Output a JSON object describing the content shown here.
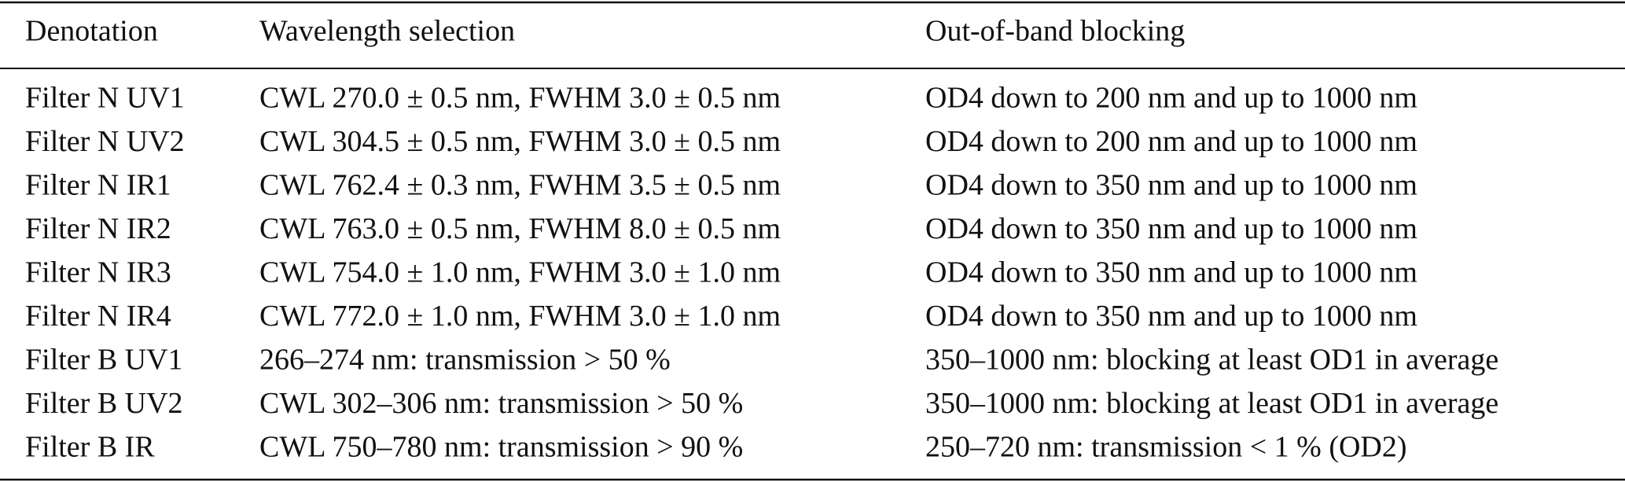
{
  "table": {
    "header": [
      "Denotation",
      "Wavelength selection",
      "Out-of-band blocking"
    ],
    "rows": [
      [
        "Filter N UV1",
        "CWL 270.0 ± 0.5 nm, FWHM 3.0 ± 0.5 nm",
        "OD4 down to 200 nm and up to 1000 nm"
      ],
      [
        "Filter N UV2",
        "CWL 304.5 ± 0.5 nm, FWHM 3.0 ± 0.5 nm",
        "OD4 down to 200 nm and up to 1000 nm"
      ],
      [
        "Filter N IR1",
        "CWL 762.4 ± 0.3 nm, FWHM 3.5 ± 0.5 nm",
        "OD4 down to 350 nm and up to 1000 nm"
      ],
      [
        "Filter N IR2",
        "CWL 763.0 ± 0.5 nm, FWHM 8.0 ± 0.5 nm",
        "OD4 down to 350 nm and up to 1000 nm"
      ],
      [
        "Filter N IR3",
        "CWL 754.0 ± 1.0 nm, FWHM 3.0 ± 1.0 nm",
        "OD4 down to 350 nm and up to 1000 nm"
      ],
      [
        "Filter N IR4",
        "CWL 772.0 ± 1.0 nm, FWHM 3.0 ± 1.0 nm",
        "OD4 down to 350 nm and up to 1000 nm"
      ],
      [
        "Filter B UV1",
        "266–274 nm: transmission > 50 %",
        "350–1000 nm: blocking at least OD1 in average"
      ],
      [
        "Filter B UV2",
        "CWL 302–306 nm: transmission > 50 %",
        "350–1000 nm: blocking at least OD1 in average"
      ],
      [
        "Filter B IR",
        "CWL 750–780 nm: transmission > 90 %",
        "250–720 nm: transmission < 1 % (OD2)"
      ]
    ]
  }
}
